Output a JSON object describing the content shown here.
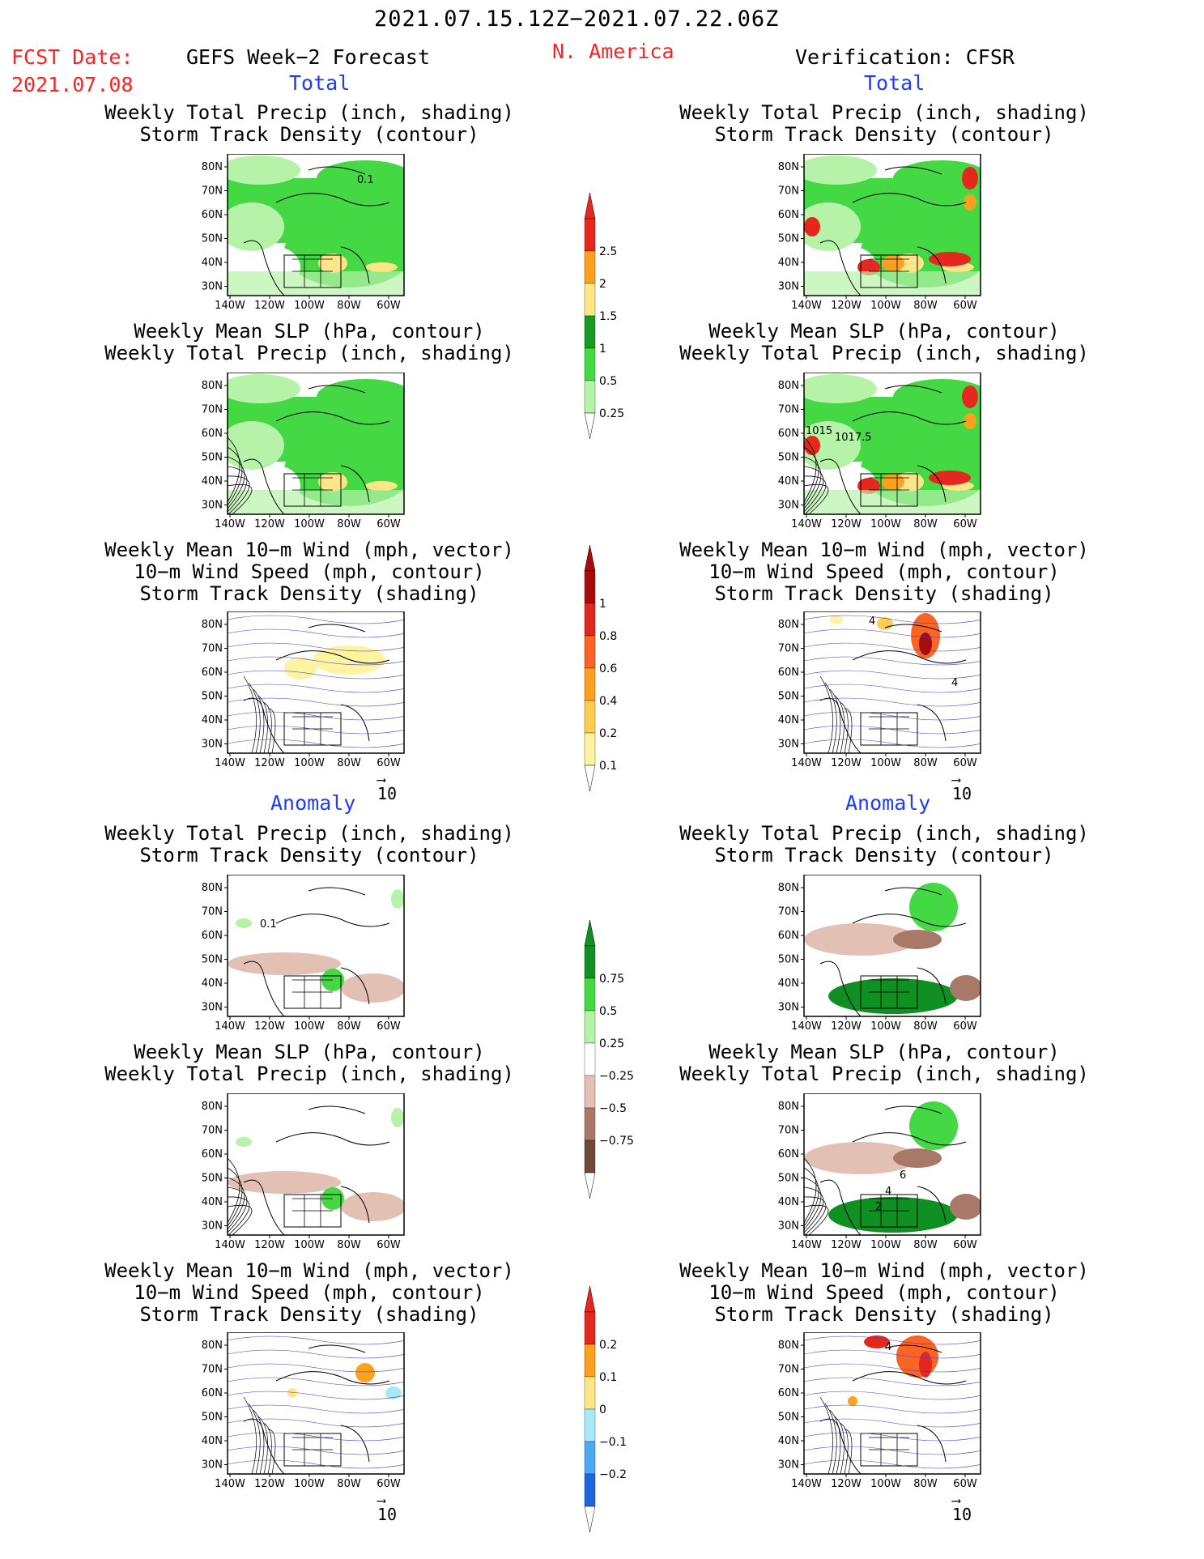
{
  "header": {
    "period": "2021.07.15.12Z−2021.07.22.06Z",
    "fcst_label": "FCST Date:",
    "fcst_date": "2021.07.08",
    "left_model": "GEFS Week−2 Forecast",
    "region": "N. America",
    "right_model": "Verification: CFSR",
    "section_total": "Total",
    "section_anomaly": "Anomaly"
  },
  "panel_titles": {
    "precip_storm": [
      "Weekly Total Precip (inch, shading)",
      "Storm Track Density (contour)"
    ],
    "slp_precip": [
      "Weekly Mean SLP (hPa, contour)",
      "Weekly Total Precip (inch, shading)"
    ],
    "wind_storm": [
      "Weekly Mean 10−m Wind (mph, vector)",
      "10−m Wind Speed (mph, contour)",
      "Storm Track Density (shading)"
    ]
  },
  "axes": {
    "lat_labels": [
      "80N",
      "70N",
      "60N",
      "50N",
      "40N",
      "30N"
    ],
    "lon_labels": [
      "140W",
      "120W",
      "100W",
      "80W",
      "60W"
    ]
  },
  "vector_ref": "10",
  "contour_labels": {
    "forecast_total_precip": "0.1",
    "verif_total_slp": [
      "1015",
      "1017.5"
    ],
    "forecast_anom_precip": "0.1",
    "verif_anom_slp": [
      "6",
      "4",
      "2"
    ],
    "verif_wind": "4"
  },
  "colorbars": [
    {
      "name": "total-precip",
      "labels": [
        "2.5",
        "2",
        "1.5",
        "1",
        "0.5",
        "0.25"
      ],
      "colors": [
        "#e4281e",
        "#fca020",
        "#fee588",
        "#189a24",
        "#44d844",
        "#b6f2a8"
      ]
    },
    {
      "name": "storm-density",
      "labels": [
        "1",
        "0.8",
        "0.6",
        "0.4",
        "0.2",
        "0.1"
      ],
      "colors": [
        "#a50c0c",
        "#e1281e",
        "#fa6424",
        "#fca020",
        "#fccd50",
        "#fef3a0"
      ]
    },
    {
      "name": "precip-anomaly",
      "labels": [
        "0.75",
        "0.5",
        "0.25",
        "−0.25",
        "−0.5",
        "−0.75"
      ],
      "colors": [
        "#109022",
        "#44d844",
        "#b6f2a8",
        "#ffffff",
        "#e3c0b4",
        "#a87868",
        "#6e4a3c"
      ]
    },
    {
      "name": "storm-density-anomaly",
      "labels": [
        "0.2",
        "0.1",
        "0",
        "−0.1",
        "−0.2"
      ],
      "colors": [
        "#e4281e",
        "#fca020",
        "#fee588",
        "#a8e8f8",
        "#50a8f0",
        "#1e64dc"
      ]
    }
  ]
}
